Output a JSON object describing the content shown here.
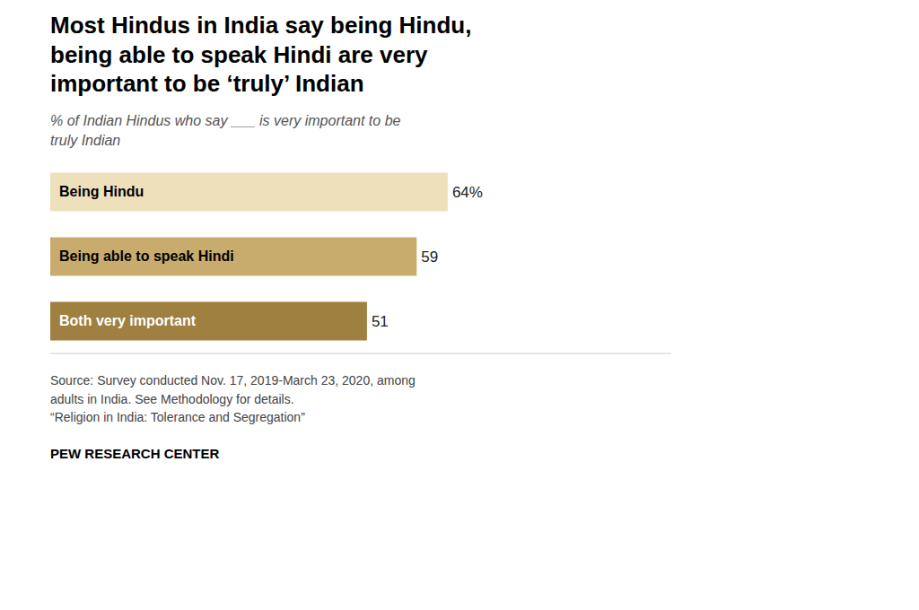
{
  "chart_data": {
    "type": "bar",
    "orientation": "horizontal",
    "title": "Most Hindus in India say being Hindu,\nbeing able to speak Hindi are very\nimportant to be ‘truly’ Indian",
    "subtitle": "% of Indian Hindus who say ___ is very important to be\ntruly Indian",
    "categories": [
      "Being Hindu",
      "Being able to speak Hindi",
      "Both very important"
    ],
    "values": [
      64,
      59,
      51
    ],
    "value_labels": [
      "64%",
      "59",
      "51"
    ],
    "data_labels": true,
    "colors": [
      "#EDE0BB",
      "#C8AC6E",
      "#A08040"
    ],
    "xlim": [
      0,
      100
    ],
    "tick_labels": false,
    "grid": false,
    "source": "Source: Survey conducted Nov. 17, 2019-March 23, 2020, among\nadults in India. See Methodology for details.\n“Religion in India: Tolerance and Segregation”",
    "footer": "PEW RESEARCH CENTER"
  }
}
